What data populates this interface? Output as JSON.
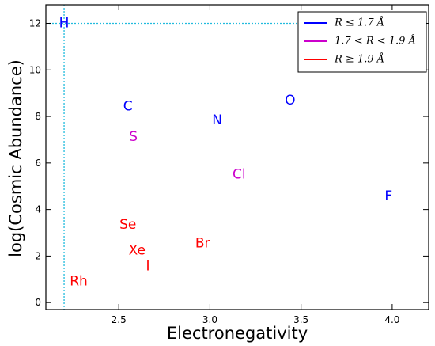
{
  "chart_data": {
    "type": "scatter",
    "title": "",
    "xlabel": "Electronegativity",
    "ylabel": "log(Cosmic Abundance)",
    "xlim": [
      2.1,
      4.2
    ],
    "ylim": [
      -0.3,
      12.8
    ],
    "xticks": [
      "2.5",
      "3.0",
      "3.5",
      "4.0"
    ],
    "xtick_values": [
      2.5,
      3.0,
      3.5,
      4.0
    ],
    "yticks": [
      "0",
      "2",
      "4",
      "6",
      "8",
      "10",
      "12"
    ],
    "ytick_values": [
      0,
      2,
      4,
      6,
      8,
      10,
      12
    ],
    "grid": false,
    "legend_position": "top-right",
    "legend": [
      {
        "label": "R ≤ 1.7 Å",
        "color": "#0000ff"
      },
      {
        "label": "1.7 < R < 1.9 Å",
        "color": "#cc00cc"
      },
      {
        "label": "R ≥ 1.9 Å",
        "color": "#ff0000"
      }
    ],
    "reference_lines": {
      "x": 2.2,
      "y": 12,
      "color": "#22bbdd"
    },
    "points": [
      {
        "label": "H",
        "x": 2.2,
        "y": 12.0,
        "color": "#0000ff"
      },
      {
        "label": "C",
        "x": 2.55,
        "y": 8.43,
        "color": "#0000ff"
      },
      {
        "label": "N",
        "x": 3.04,
        "y": 7.83,
        "color": "#0000ff"
      },
      {
        "label": "O",
        "x": 3.44,
        "y": 8.69,
        "color": "#0000ff"
      },
      {
        "label": "F",
        "x": 3.98,
        "y": 4.56,
        "color": "#0000ff"
      },
      {
        "label": "S",
        "x": 2.58,
        "y": 7.12,
        "color": "#cc00cc"
      },
      {
        "label": "Cl",
        "x": 3.16,
        "y": 5.5,
        "color": "#cc00cc"
      },
      {
        "label": "Se",
        "x": 2.55,
        "y": 3.34,
        "color": "#ff0000"
      },
      {
        "label": "Xe",
        "x": 2.6,
        "y": 2.24,
        "color": "#ff0000"
      },
      {
        "label": "I",
        "x": 2.66,
        "y": 1.55,
        "color": "#ff0000"
      },
      {
        "label": "Br",
        "x": 2.96,
        "y": 2.54,
        "color": "#ff0000"
      },
      {
        "label": "Rh",
        "x": 2.28,
        "y": 0.91,
        "color": "#ff0000"
      }
    ]
  }
}
